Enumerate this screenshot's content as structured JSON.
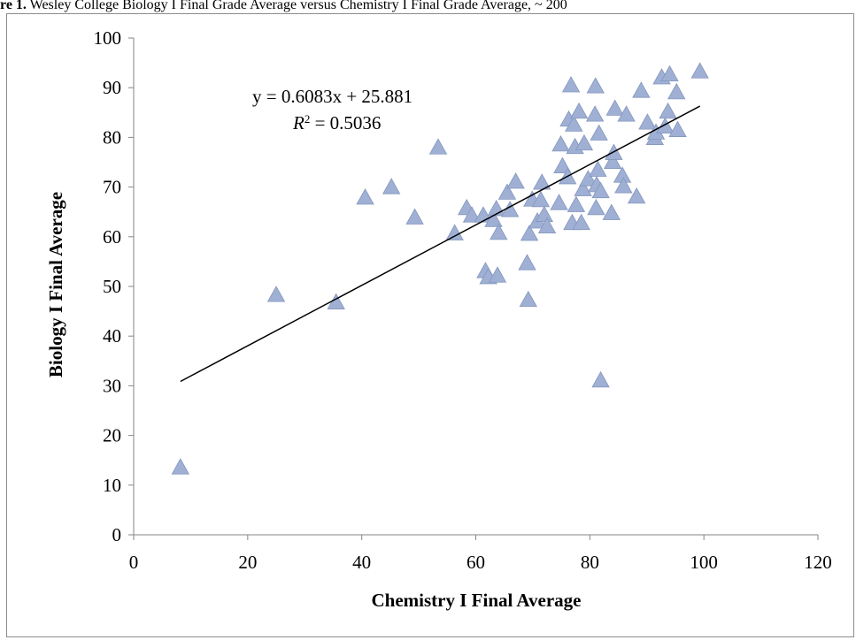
{
  "caption": {
    "lead": "re 1.",
    "text": " Wesley College Biology I Final Grade Average versus Chemistry I Final Grade Average, ~ 200"
  },
  "chart_data": {
    "type": "scatter",
    "xlabel": "Chemistry I Final Average",
    "ylabel": "Biology I Final Average",
    "xlim": [
      0,
      120
    ],
    "ylim": [
      0,
      100
    ],
    "xticks": [
      "0",
      "20",
      "40",
      "60",
      "80",
      "100",
      "120"
    ],
    "yticks": [
      "0",
      "10",
      "20",
      "30",
      "40",
      "50",
      "60",
      "70",
      "80",
      "90",
      "100"
    ],
    "grid": false,
    "legend": "none",
    "marker": "triangle",
    "marker_color": "#9fb0d4",
    "marker_edge": "#8496bd",
    "trendline": {
      "equation": "y = 0.6083x + 25.881",
      "r2_label": "R",
      "r2_sup": "2",
      "r2_value": " = 0.5036",
      "slope": 0.6083,
      "intercept": 25.881,
      "x_range": [
        8.2,
        99.3
      ]
    },
    "points": [
      {
        "x": 8.2,
        "y": 13.6
      },
      {
        "x": 25.0,
        "y": 48.3
      },
      {
        "x": 35.5,
        "y": 46.8
      },
      {
        "x": 40.6,
        "y": 67.9
      },
      {
        "x": 45.2,
        "y": 70.0
      },
      {
        "x": 49.3,
        "y": 63.9
      },
      {
        "x": 53.4,
        "y": 78.0
      },
      {
        "x": 56.3,
        "y": 60.7
      },
      {
        "x": 58.4,
        "y": 65.8
      },
      {
        "x": 59.3,
        "y": 64.3
      },
      {
        "x": 61.3,
        "y": 64.3
      },
      {
        "x": 61.7,
        "y": 53.1
      },
      {
        "x": 62.2,
        "y": 51.9
      },
      {
        "x": 63.1,
        "y": 63.4
      },
      {
        "x": 63.6,
        "y": 65.6
      },
      {
        "x": 63.8,
        "y": 52.2
      },
      {
        "x": 64.0,
        "y": 60.8
      },
      {
        "x": 65.5,
        "y": 68.9
      },
      {
        "x": 66.0,
        "y": 65.4
      },
      {
        "x": 67.0,
        "y": 71.1
      },
      {
        "x": 69.0,
        "y": 54.7
      },
      {
        "x": 69.2,
        "y": 47.3
      },
      {
        "x": 69.4,
        "y": 60.6
      },
      {
        "x": 69.9,
        "y": 67.5
      },
      {
        "x": 70.8,
        "y": 63.1
      },
      {
        "x": 71.4,
        "y": 67.4
      },
      {
        "x": 71.6,
        "y": 70.9
      },
      {
        "x": 72.0,
        "y": 64.4
      },
      {
        "x": 72.5,
        "y": 62.1
      },
      {
        "x": 74.6,
        "y": 66.8
      },
      {
        "x": 74.9,
        "y": 78.6
      },
      {
        "x": 75.2,
        "y": 74.2
      },
      {
        "x": 76.1,
        "y": 72.0
      },
      {
        "x": 76.3,
        "y": 83.6
      },
      {
        "x": 76.7,
        "y": 90.5
      },
      {
        "x": 76.9,
        "y": 62.8
      },
      {
        "x": 77.2,
        "y": 82.6
      },
      {
        "x": 77.4,
        "y": 78.1
      },
      {
        "x": 77.6,
        "y": 66.4
      },
      {
        "x": 78.1,
        "y": 85.2
      },
      {
        "x": 78.5,
        "y": 62.8
      },
      {
        "x": 78.8,
        "y": 69.6
      },
      {
        "x": 79.0,
        "y": 78.8
      },
      {
        "x": 79.7,
        "y": 71.6
      },
      {
        "x": 80.9,
        "y": 84.6
      },
      {
        "x": 81.0,
        "y": 90.3
      },
      {
        "x": 81.1,
        "y": 65.8
      },
      {
        "x": 81.2,
        "y": 70.4
      },
      {
        "x": 81.4,
        "y": 73.5
      },
      {
        "x": 81.6,
        "y": 80.8
      },
      {
        "x": 81.9,
        "y": 69.2
      },
      {
        "x": 81.9,
        "y": 31.1
      },
      {
        "x": 83.8,
        "y": 64.8
      },
      {
        "x": 84.0,
        "y": 75.1
      },
      {
        "x": 84.2,
        "y": 76.9
      },
      {
        "x": 84.4,
        "y": 85.8
      },
      {
        "x": 85.7,
        "y": 72.3
      },
      {
        "x": 85.9,
        "y": 70.2
      },
      {
        "x": 86.4,
        "y": 84.6
      },
      {
        "x": 88.2,
        "y": 68.1
      },
      {
        "x": 89.0,
        "y": 89.4
      },
      {
        "x": 90.1,
        "y": 83.0
      },
      {
        "x": 91.4,
        "y": 79.9
      },
      {
        "x": 91.6,
        "y": 81.0
      },
      {
        "x": 92.6,
        "y": 92.1
      },
      {
        "x": 93.2,
        "y": 82.2
      },
      {
        "x": 93.7,
        "y": 85.2
      },
      {
        "x": 94.0,
        "y": 92.7
      },
      {
        "x": 95.2,
        "y": 89.1
      },
      {
        "x": 95.4,
        "y": 81.5
      },
      {
        "x": 99.3,
        "y": 93.3
      }
    ]
  }
}
